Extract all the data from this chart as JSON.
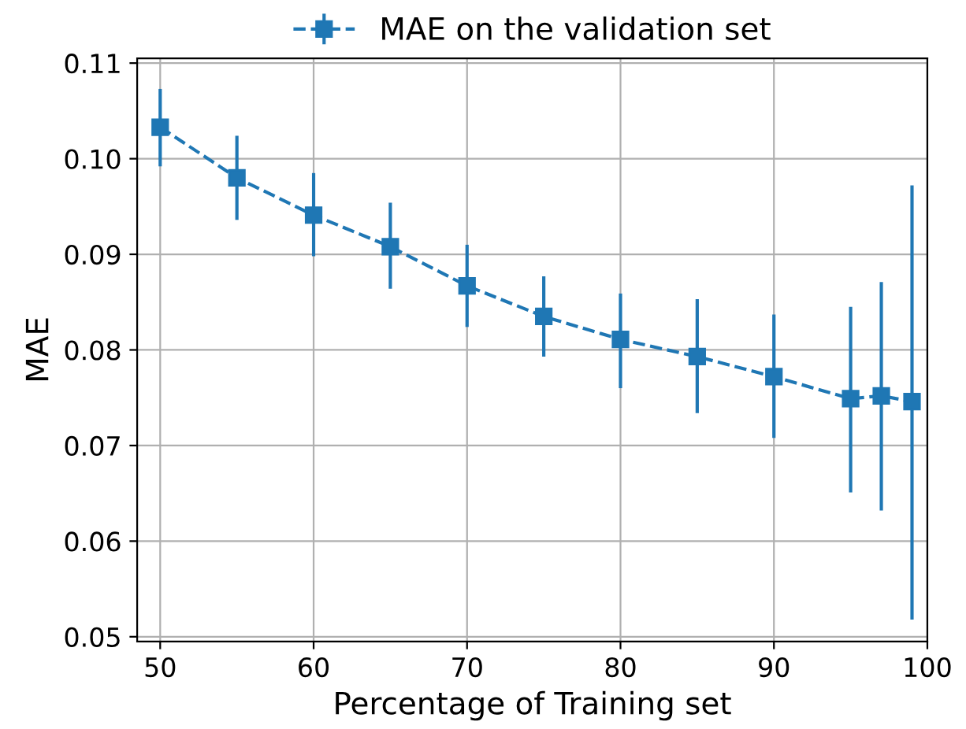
{
  "chart_data": {
    "type": "line",
    "xlabel": "Percentage of Training set",
    "ylabel": "MAE",
    "x": [
      50,
      55,
      60,
      65,
      70,
      75,
      80,
      85,
      90,
      95,
      97,
      99
    ],
    "series": [
      {
        "name": "MAE on the validation set",
        "color": "#1f77b4",
        "values": [
          0.1033,
          0.098,
          0.0941,
          0.0908,
          0.0867,
          0.0835,
          0.0811,
          0.0793,
          0.0772,
          0.0749,
          0.0752,
          0.0746
        ],
        "errors": [
          [
            0.0992,
            0.1073
          ],
          [
            0.0936,
            0.1024
          ],
          [
            0.0898,
            0.0985
          ],
          [
            0.0864,
            0.0954
          ],
          [
            0.0824,
            0.091
          ],
          [
            0.0793,
            0.0877
          ],
          [
            0.076,
            0.0859
          ],
          [
            0.0734,
            0.0853
          ],
          [
            0.0708,
            0.0837
          ],
          [
            0.0651,
            0.0845
          ],
          [
            0.0632,
            0.0871
          ],
          [
            0.0518,
            0.0972
          ]
        ]
      }
    ],
    "xlim": [
      48.5,
      100
    ],
    "xticks": [
      50,
      60,
      70,
      80,
      90,
      100
    ],
    "ylim": [
      0.0495,
      0.1105
    ],
    "yticks": [
      {
        "value": 0.05,
        "label": "0.05"
      },
      {
        "value": 0.06,
        "label": "0.06"
      },
      {
        "value": 0.07,
        "label": "0.07"
      },
      {
        "value": 0.08,
        "label": "0.08"
      },
      {
        "value": 0.09,
        "label": "0.09"
      },
      {
        "value": 0.1,
        "label": "0.10"
      },
      {
        "value": 0.11,
        "label": "0.11"
      }
    ],
    "grid": true,
    "legend": "top",
    "marker": "square",
    "line_style": "dashed"
  }
}
